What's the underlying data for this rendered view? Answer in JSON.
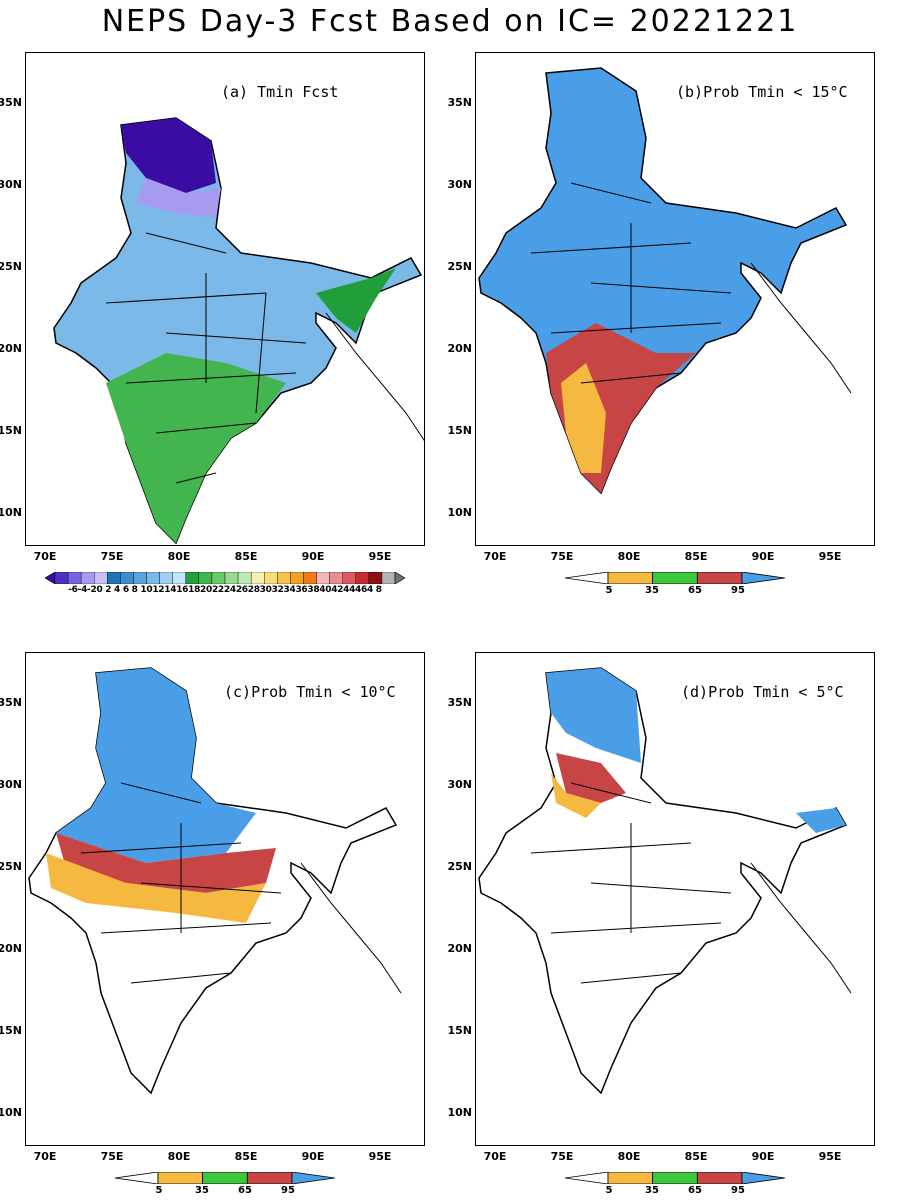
{
  "title": "NEPS Day-3 Fcst Based on IC= 20221221",
  "panels": [
    {
      "label": "(a) Tmin Fcst"
    },
    {
      "label": "(b)Prob Tmin < 15°C"
    },
    {
      "label": "(c)Prob Tmin < 10°C"
    },
    {
      "label": "(d)Prob Tmin < 5°C"
    }
  ],
  "axes": {
    "lat_labels": [
      "35N",
      "30N",
      "25N",
      "20N",
      "15N",
      "10N"
    ],
    "lon_labels": [
      "70E",
      "75E",
      "80E",
      "85E",
      "90E",
      "95E"
    ]
  },
  "temp_colorbar": {
    "ticks": "-6-4-20 2 4 6 8 101214161820222426283032343638404244464 8",
    "colors": [
      "#3a0ca3",
      "#4f2fc7",
      "#7a63e0",
      "#a69bf0",
      "#c9c1f6",
      "#1c74b8",
      "#3d8ed0",
      "#5aa3de",
      "#7bbae8",
      "#9fd0f1",
      "#c1e6f8",
      "#1f9e3a",
      "#43b54e",
      "#6cc86b",
      "#98da90",
      "#c1e9b8",
      "#f5f0b0",
      "#f7dd7c",
      "#f5c24a",
      "#f2a124",
      "#ef7a18",
      "#f1b8bd",
      "#ea8d93",
      "#dd5a62",
      "#c52a2f",
      "#8f0f14",
      "#b3b3b3",
      "#707070"
    ]
  },
  "prob_colorbar": {
    "ticks": [
      "5",
      "35",
      "65",
      "95"
    ],
    "colors": [
      "#ffffff",
      "#f5b841",
      "#3cc73c",
      "#c84545",
      "#4a9ee8"
    ]
  }
}
